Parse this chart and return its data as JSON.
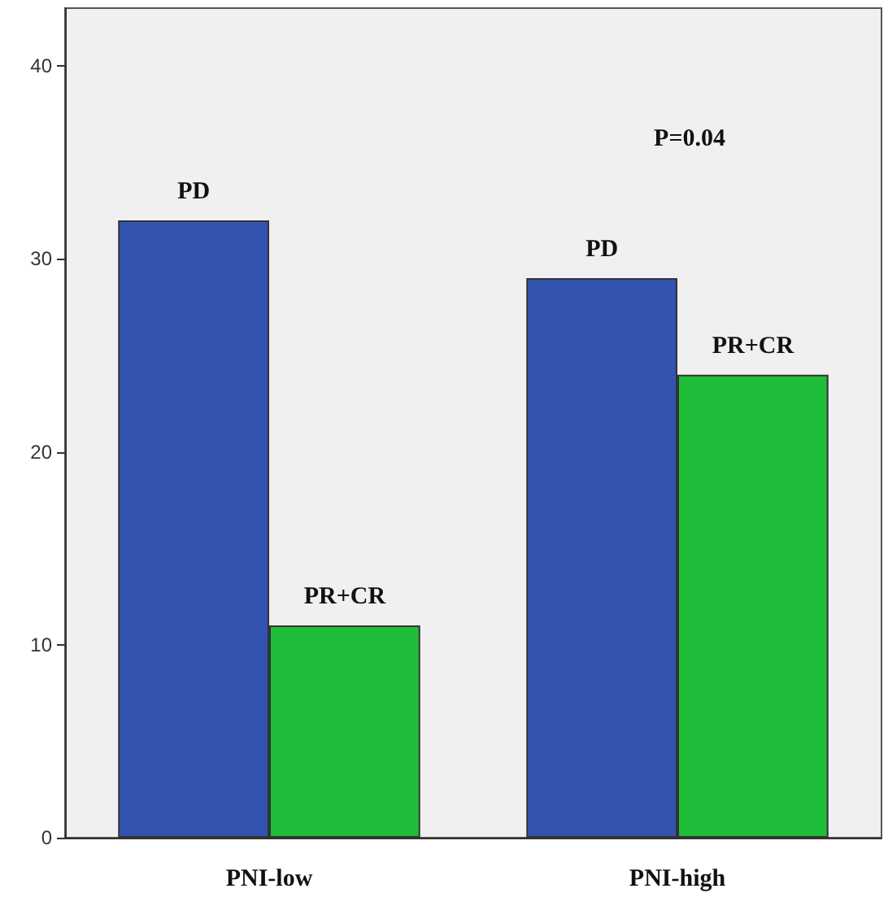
{
  "chart_data": {
    "type": "bar",
    "categories": [
      "PNI-low",
      "PNI-high"
    ],
    "series": [
      {
        "name": "PD",
        "color": "#3353b0",
        "values": [
          32,
          29
        ]
      },
      {
        "name": "PR+CR",
        "color": "#1fbd3a",
        "values": [
          11,
          24
        ]
      }
    ],
    "ylim": [
      0,
      43
    ],
    "yticks": [
      0,
      10,
      20,
      30,
      40
    ],
    "grid": false,
    "legend": false,
    "annotations": [
      "P=0.04"
    ]
  }
}
